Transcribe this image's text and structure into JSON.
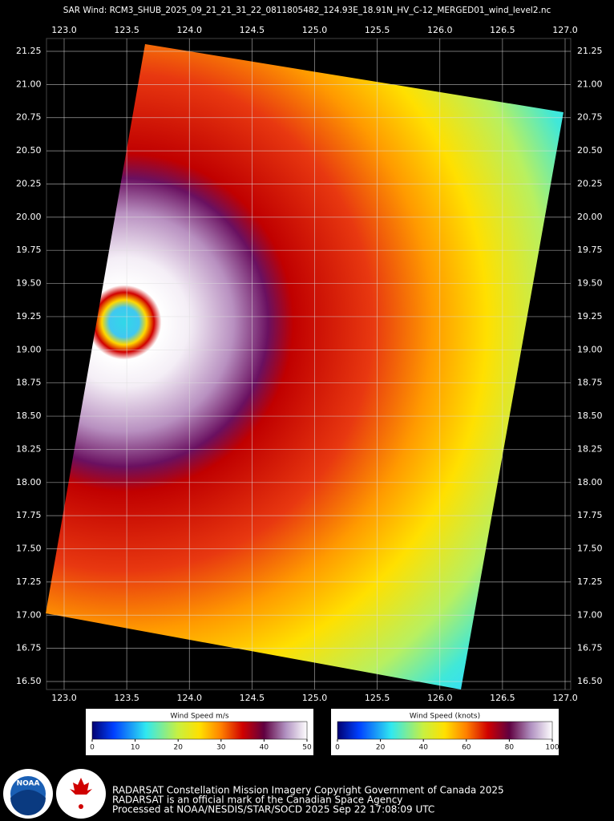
{
  "map": {
    "title": "SAR Wind: RCM3_SHUB_2025_09_21_21_31_22_0811805482_124.93E_18.91N_HV_C-12_MERGED01_wind_level2.nc",
    "lon_ticks": [
      {
        "value": 123,
        "label": "123.0"
      },
      123.5,
      {
        "value": 124,
        "label": "124.0"
      },
      124.5,
      {
        "value": 125,
        "label": "125.0"
      },
      125.5,
      {
        "value": 126,
        "label": "126.0"
      },
      126.5,
      {
        "value": 127,
        "label": "127.0"
      }
    ],
    "lat_ticks": [
      21.25,
      {
        "value": 21,
        "label": "21.00"
      },
      20.75,
      {
        "value": 20.5,
        "label": "20.50"
      },
      20.25,
      {
        "value": 20,
        "label": "20.00"
      },
      19.75,
      {
        "value": 19.5,
        "label": "19.50"
      },
      19.25,
      {
        "value": 19,
        "label": "19.00"
      },
      18.75,
      {
        "value": 18.5,
        "label": "18.50"
      },
      18.25,
      {
        "value": 18,
        "label": "18.00"
      },
      17.75,
      {
        "value": 17.5,
        "label": "17.50"
      },
      17.25,
      {
        "value": 17,
        "label": "17.00"
      },
      16.75,
      {
        "value": 16.5,
        "label": "16.50"
      }
    ],
    "lonlim": [
      123,
      127
    ],
    "latlim": [
      16.5,
      21.25
    ]
  },
  "colorbars": [
    {
      "label": "Wind Speed m/s",
      "lim": [
        0,
        50
      ],
      "ticks": [
        0,
        10,
        20,
        30,
        40,
        50
      ]
    },
    {
      "label": "Wind Speed (knots)",
      "lim": [
        0,
        100
      ],
      "ticks": [
        0,
        20,
        40,
        60,
        80,
        100
      ]
    }
  ],
  "logos": {
    "noaa": "NOAA"
  },
  "footer": [
    "RADARSAT Constellation Mission Imagery Copyright Government of Canada 2025",
    "RADARSAT is an official mark of the Canadian Space Agency",
    "Processed at NOAA/NESDIS/STAR/SOCD 2025 Sep 22 17:08:09 UTC"
  ]
}
